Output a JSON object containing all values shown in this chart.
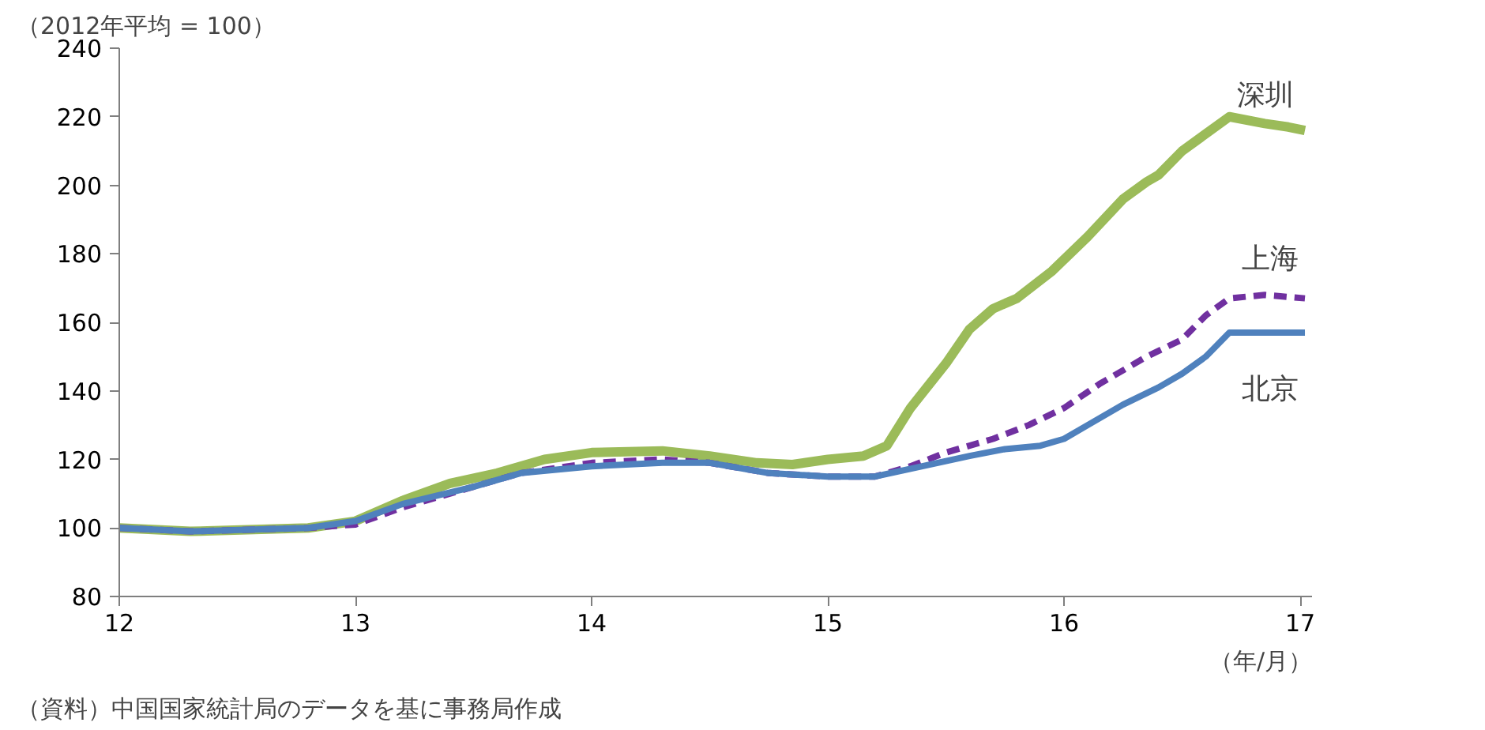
{
  "chart_data": {
    "type": "line",
    "ylabel": "（2012年平均 = 100）",
    "xlabel": "（年/月）",
    "annotations": [
      "（資料）中国国家統計局のデータを基に事務局作成"
    ],
    "xlim": [
      12,
      17.05
    ],
    "xticks": [
      12,
      13,
      14,
      15,
      16,
      17
    ],
    "ylim": [
      80,
      240
    ],
    "yticks": [
      80,
      100,
      120,
      140,
      160,
      180,
      200,
      220,
      240
    ],
    "grid": false,
    "marker": "none",
    "series": [
      {
        "name": "深圳",
        "color": "#9bbb59",
        "line_style": "solid",
        "x": [
          12.0,
          12.3,
          12.8,
          13.0,
          13.2,
          13.4,
          13.6,
          13.8,
          14.0,
          14.3,
          14.5,
          14.7,
          14.85,
          15.0,
          15.15,
          15.25,
          15.35,
          15.5,
          15.6,
          15.7,
          15.8,
          15.95,
          16.1,
          16.25,
          16.35,
          16.4,
          16.5,
          16.6,
          16.7,
          16.85,
          16.95,
          17.02
        ],
        "values": [
          100,
          99,
          100,
          102,
          108,
          113,
          116,
          120,
          122,
          122.5,
          121,
          119,
          118.5,
          120,
          121,
          124,
          135,
          148,
          158,
          164,
          167,
          175,
          185,
          196,
          201,
          203,
          210,
          215,
          220,
          218,
          217,
          216
        ]
      },
      {
        "name": "上海",
        "color": "#7030a0",
        "line_style": "dashed",
        "x": [
          12.0,
          12.3,
          12.8,
          13.0,
          13.2,
          13.5,
          13.7,
          14.0,
          14.3,
          14.5,
          14.75,
          15.0,
          15.2,
          15.35,
          15.5,
          15.7,
          15.85,
          16.0,
          16.15,
          16.35,
          16.5,
          16.6,
          16.7,
          16.85,
          17.02
        ],
        "values": [
          100,
          99,
          100,
          101,
          106,
          112,
          116,
          119,
          120,
          119,
          116,
          115,
          115,
          118,
          122,
          126,
          130,
          135,
          142,
          150,
          155,
          162,
          167,
          168,
          167
        ]
      },
      {
        "name": "北京",
        "color": "#4f81bd",
        "line_style": "solid",
        "x": [
          12.0,
          12.3,
          12.8,
          13.0,
          13.2,
          13.5,
          13.7,
          14.0,
          14.3,
          14.5,
          14.75,
          15.0,
          15.2,
          15.4,
          15.6,
          15.75,
          15.9,
          16.0,
          16.1,
          16.25,
          16.4,
          16.5,
          16.6,
          16.7,
          16.85,
          17.02
        ],
        "values": [
          100,
          99,
          100,
          102,
          107,
          112,
          116,
          118,
          119,
          119,
          116,
          115,
          115,
          118,
          121,
          123,
          124,
          126,
          130,
          136,
          141,
          145,
          150,
          157,
          157,
          157
        ]
      }
    ]
  }
}
